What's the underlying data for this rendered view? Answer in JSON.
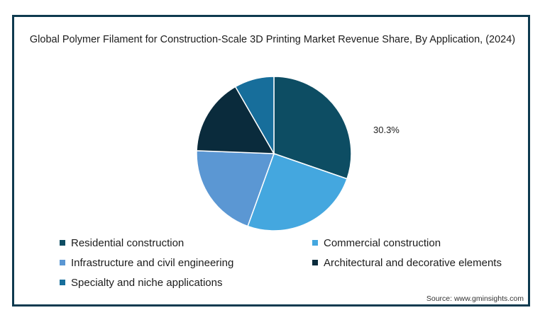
{
  "chart_data": {
    "type": "pie",
    "title": "Global Polymer Filament for Construction-Scale 3D Printing Market Revenue Share, By Application,  (2024)",
    "slices": [
      {
        "label": "Residential construction",
        "value": 30.3,
        "color": "#0d4d63",
        "display": "30.3%"
      },
      {
        "label": "Commercial construction",
        "value": 25.2,
        "color": "#44a7df",
        "display": ""
      },
      {
        "label": "Infrastructure and civil engineering",
        "value": 20.1,
        "color": "#5b97d3",
        "display": ""
      },
      {
        "label": "Architectural and decorative elements",
        "value": 16.1,
        "color": "#0a2b3c",
        "display": ""
      },
      {
        "label": "Specialty and niche applications",
        "value": 8.3,
        "color": "#176e9b",
        "display": ""
      }
    ],
    "legend_position": "bottom"
  },
  "source": "Source: www.gminsights.com"
}
